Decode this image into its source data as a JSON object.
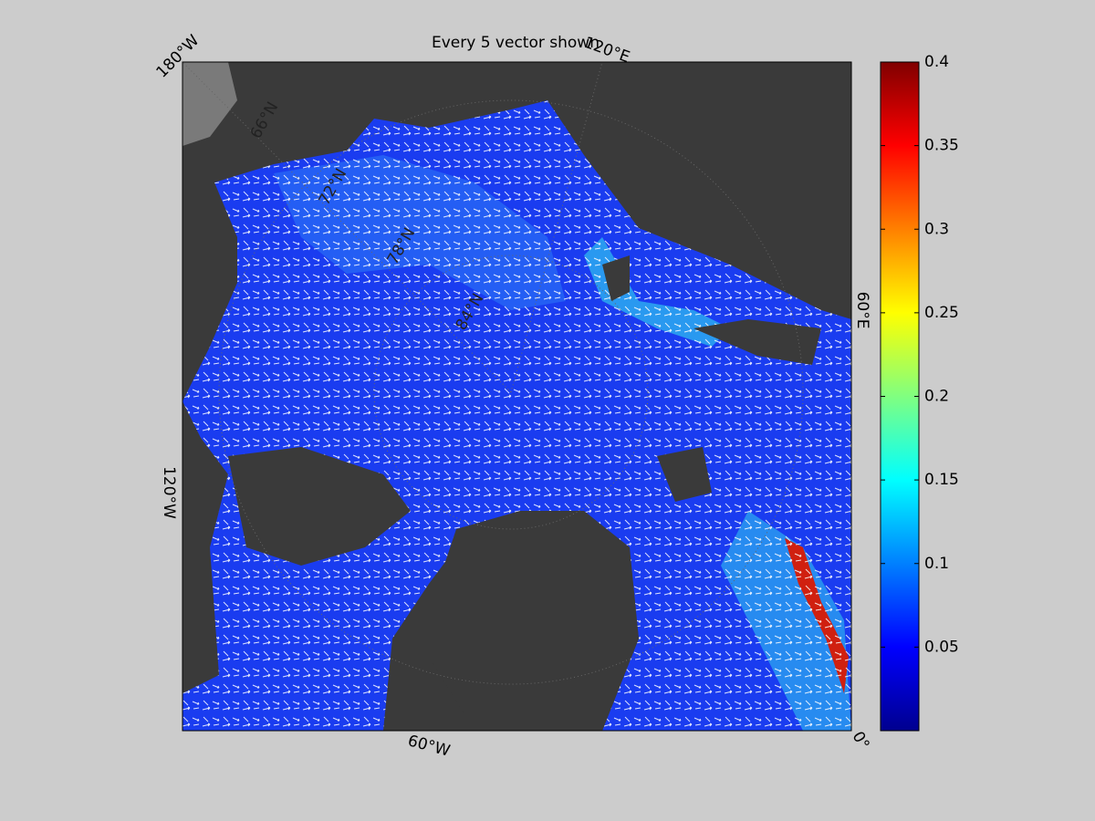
{
  "title": "Every 5 vector shown",
  "map": {
    "lon_labels": [
      "180°W",
      "120°E",
      "60°E",
      "0°",
      "60°W",
      "120°W"
    ],
    "lat_labels": [
      "66°N",
      "72°N",
      "78°N",
      "84°N"
    ]
  },
  "colorbar": {
    "lim": [
      0,
      0.4
    ],
    "ticks": [
      0.05,
      0.1,
      0.15,
      0.2,
      0.25,
      0.3,
      0.35,
      0.4
    ],
    "colors": [
      "#00008f",
      "#0000ff",
      "#0080ff",
      "#00ffff",
      "#80ff80",
      "#ffff00",
      "#ff8000",
      "#ff0000",
      "#800000"
    ]
  }
}
